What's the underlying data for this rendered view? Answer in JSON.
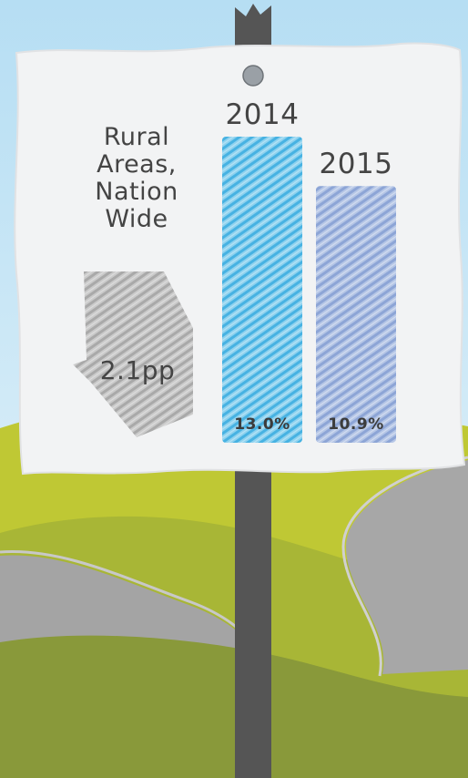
{
  "chart_data": {
    "type": "bar",
    "categories": [
      "2014",
      "2015"
    ],
    "values": [
      13.0,
      10.9
    ],
    "value_labels": [
      "13.0%",
      "10.9%"
    ],
    "colors": [
      "#6cc0e6",
      "#9bb2dc"
    ],
    "annotation": {
      "region": [
        "Rural",
        "Areas,",
        "Nation",
        "Wide"
      ],
      "change": "2.1pp",
      "direction": "down",
      "color": "#b4b4b4"
    },
    "ylim": [
      0,
      13.0
    ]
  },
  "colors": {
    "sky": "#cfe9f6",
    "sign": "#f2f3f4",
    "pole": "#555555",
    "hill_light": "#b3bf35",
    "hill_dark": "#8a9a34",
    "road": "#a6a6a6"
  }
}
